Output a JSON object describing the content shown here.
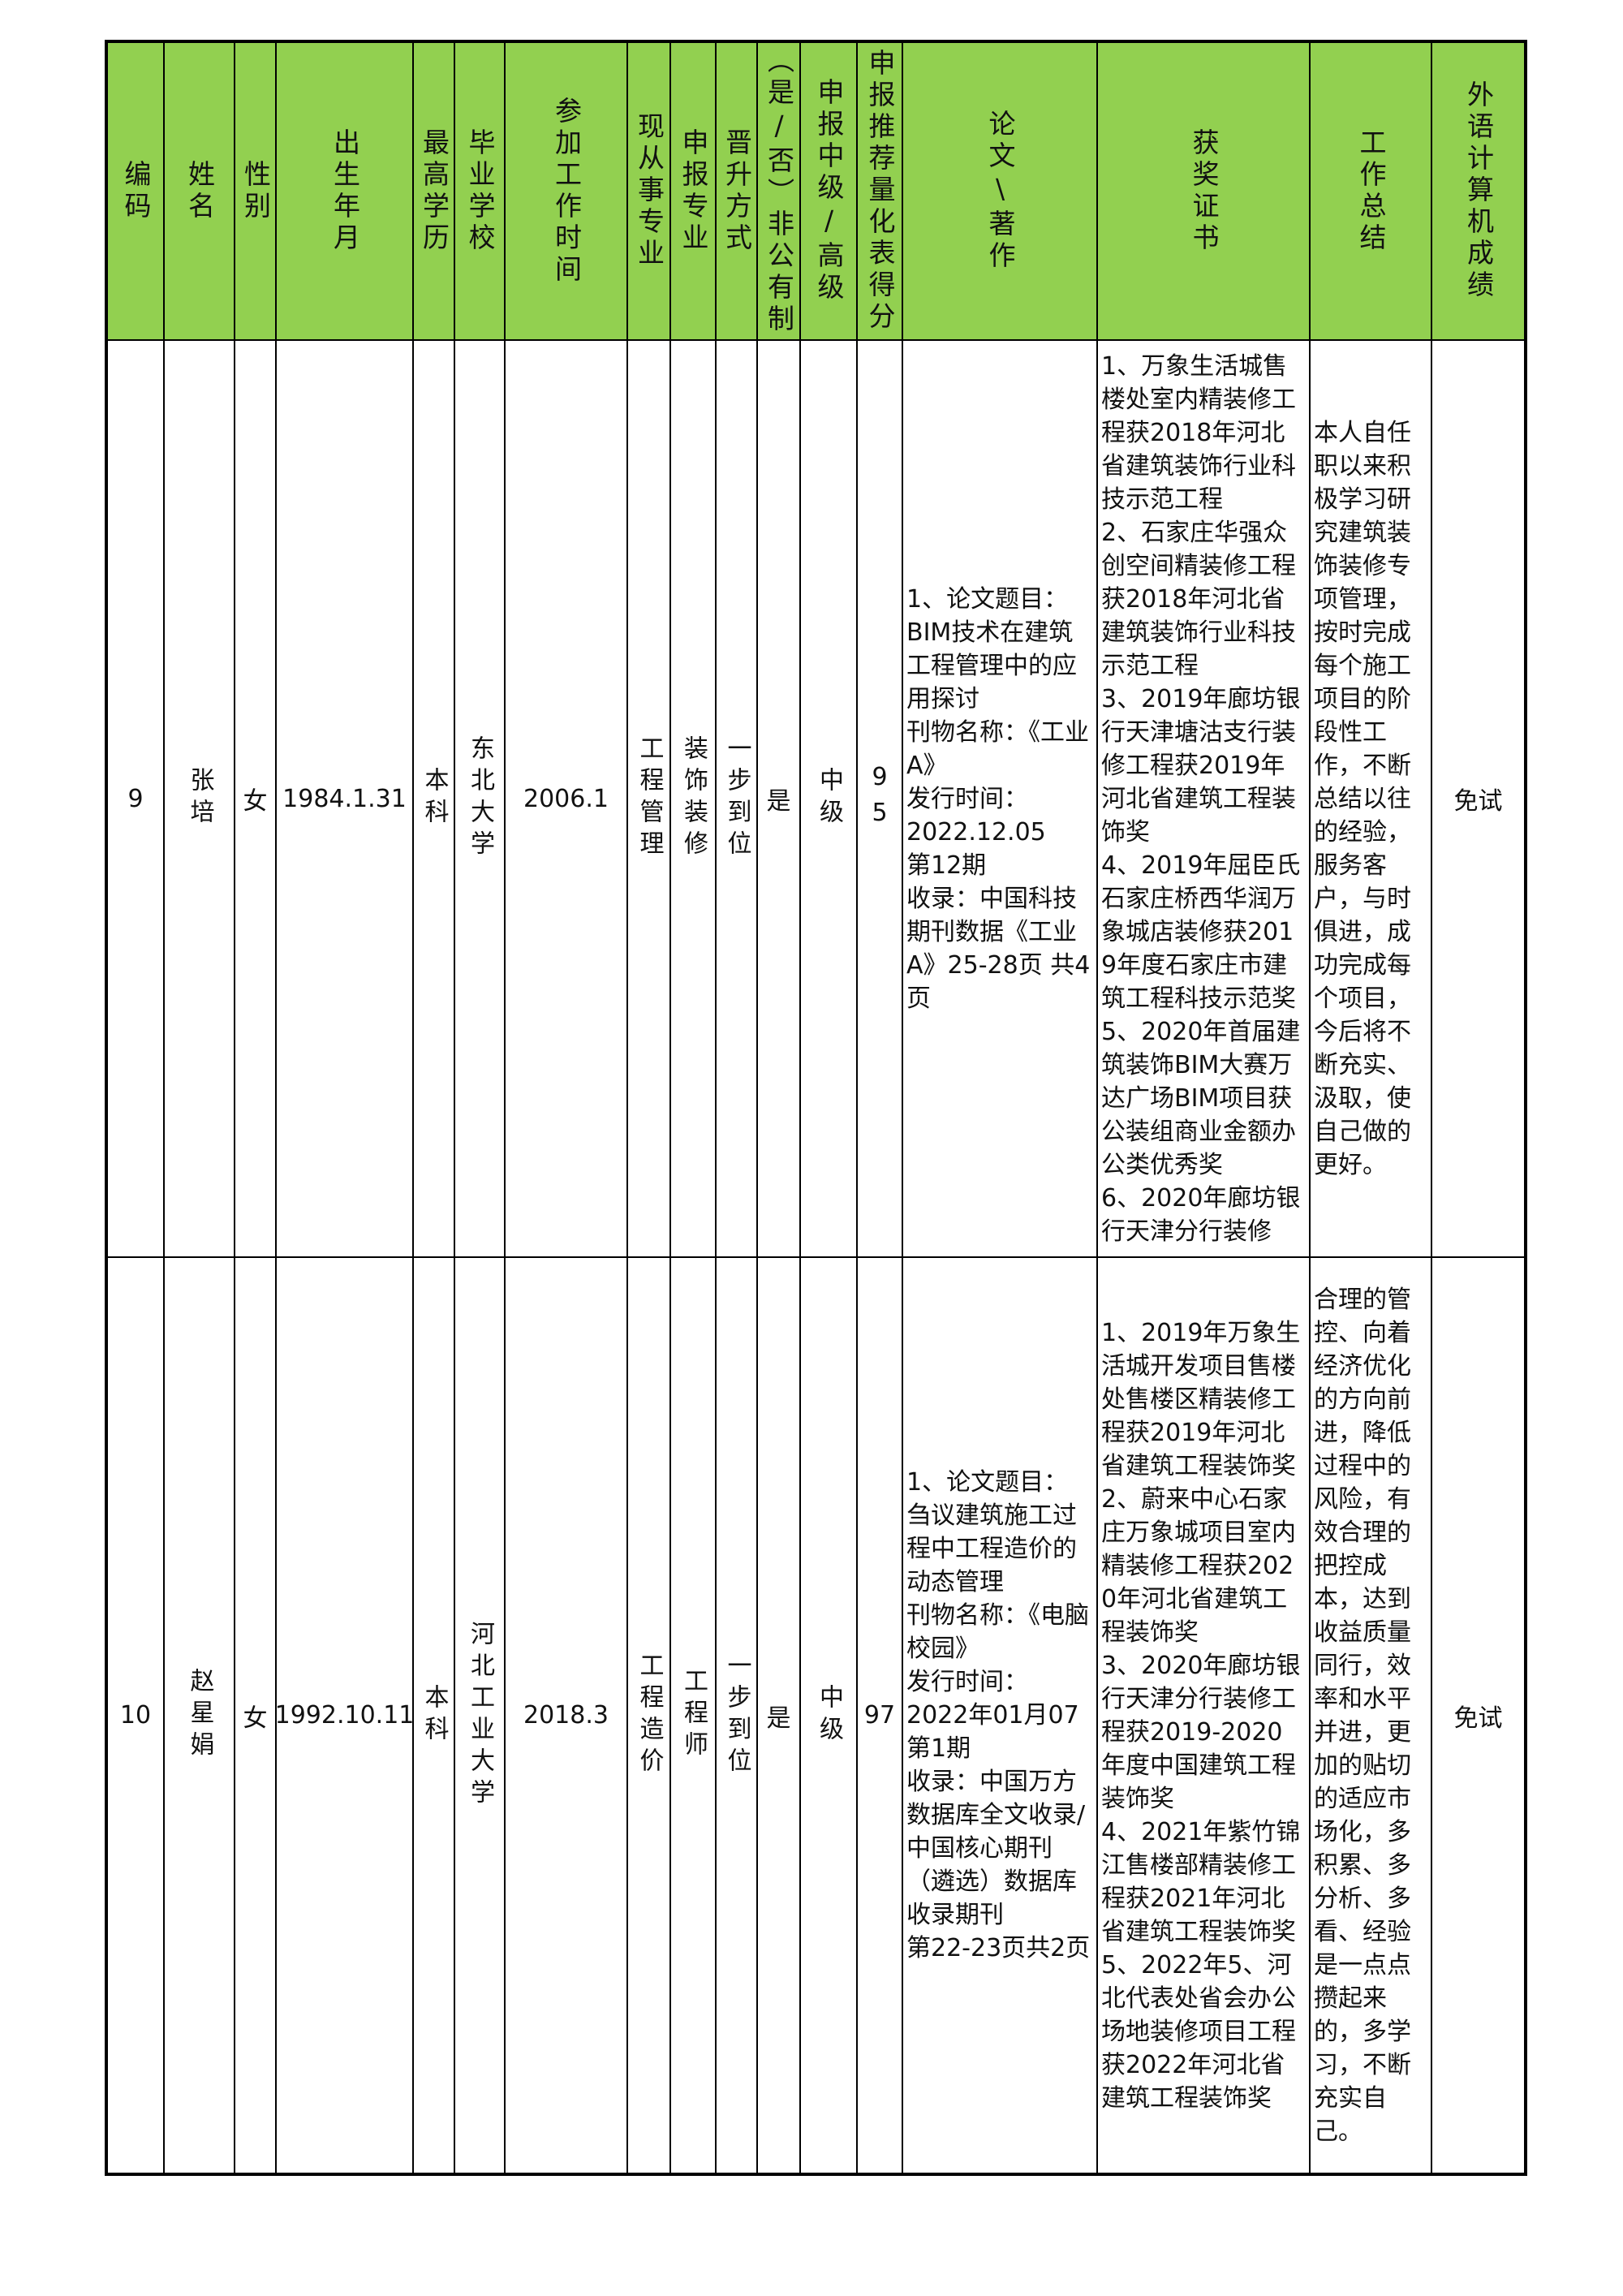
{
  "headers": [
    "编码",
    "姓名",
    "性别",
    "出生年月",
    "最高学历",
    "毕业学校",
    "参加工作时间",
    "现从事专业",
    "申报专业",
    "晋升方式",
    "（是/否）非公有制",
    "申报中级/高级",
    "申报推荐量化表得分",
    "论文\\著作",
    "获奖证书",
    "工作总结",
    "外语计算机成绩"
  ],
  "header_color": "#92d050",
  "rows": [
    {
      "id": "9",
      "name": "张培",
      "gender": "女",
      "birth": "1984.1.31",
      "edu": "本科",
      "school": "东北大学",
      "work_start": "2006.1",
      "current_major": "工程管理",
      "apply_major": "装饰装修",
      "promotion": "一步到位",
      "non_public": "是",
      "level": "中级",
      "score": "95",
      "paper": [
        "1、论文题目：",
        "BIM技术在建筑工程管理中的应用探讨",
        "刊物名称：《工业A》",
        "发行时间：",
        "2022.12.05",
        "第12期",
        "收录：中国科技期刊数据《工业A》25-28页 共4页"
      ],
      "awards": [
        "1、万象生活城售楼处室内精装修工程获2018年河北省建筑装饰行业科技示范工程",
        "2、石家庄华强众创空间精装修工程获2018年河北省建筑装饰行业科技示范工程",
        "3、2019年廊坊银行天津塘沽支行装修工程获2019年河北省建筑工程装饰奖",
        "4、2019年屈臣氏石家庄桥西华润万象城店装修获2019年度石家庄市建筑工程科技示范奖",
        "5、2020年首届建筑装饰BIM大赛万达广场BIM项目获公装组商业金额办公类优秀奖",
        "6、2020年廊坊银行天津分行装修"
      ],
      "summary": "本人自任职以来积极学习研究建筑装饰装修专项管理，按时完成每个施工项目的阶段性工作，不断总结以往的经验，服务客户，与时俱进，成功完成每个项目，今后将不断充实、汲取，使自己做的更好。",
      "exam": "免试"
    },
    {
      "id": "10",
      "name": "赵星娟",
      "gender": "女",
      "birth": "1992.10.11",
      "edu": "本科",
      "school": "河北工业大学",
      "work_start": "2018.3",
      "current_major": "工程造价",
      "apply_major": "工程师",
      "promotion": "一步到位",
      "non_public": "是",
      "level": "中级",
      "score": "97",
      "paper": [
        "1、论文题目：",
        "刍议建筑施工过程中工程造价的动态管理",
        "刊物名称：《电脑校园》",
        "发行时间：",
        "2022年01月07",
        "第1期",
        "收录：中国万方数据库全文收录/中国核心期刊（遴选）数据库收录期刊",
        "第22-23页共2页"
      ],
      "awards": [
        "1、2019年万象生活城开发项目售楼处售楼区精装修工程获2019年河北省建筑工程装饰奖",
        "2、蔚来中心石家庄万象城项目室内精装修工程获2020年河北省建筑工程装饰奖",
        "3、2020年廊坊银行天津分行装修工程获2019-2020年度中国建筑工程装饰奖",
        "4、2021年紫竹锦江售楼部精装修工程获2021年河北省建筑工程装饰奖",
        "5、2022年5、河北代表处省会办公场地装修项目工程获2022年河北省建筑工程装饰奖"
      ],
      "summary": "合理的管控、向着经济优化的方向前进，降低过程中的风险，有效合理的把控成本，达到收益质量同行，效率和水平并进，更加的贴切的适应市场化，多积累、多分析、多看、经验是一点点攒起来的，多学习，不断充实自己。",
      "exam": "免试"
    }
  ]
}
